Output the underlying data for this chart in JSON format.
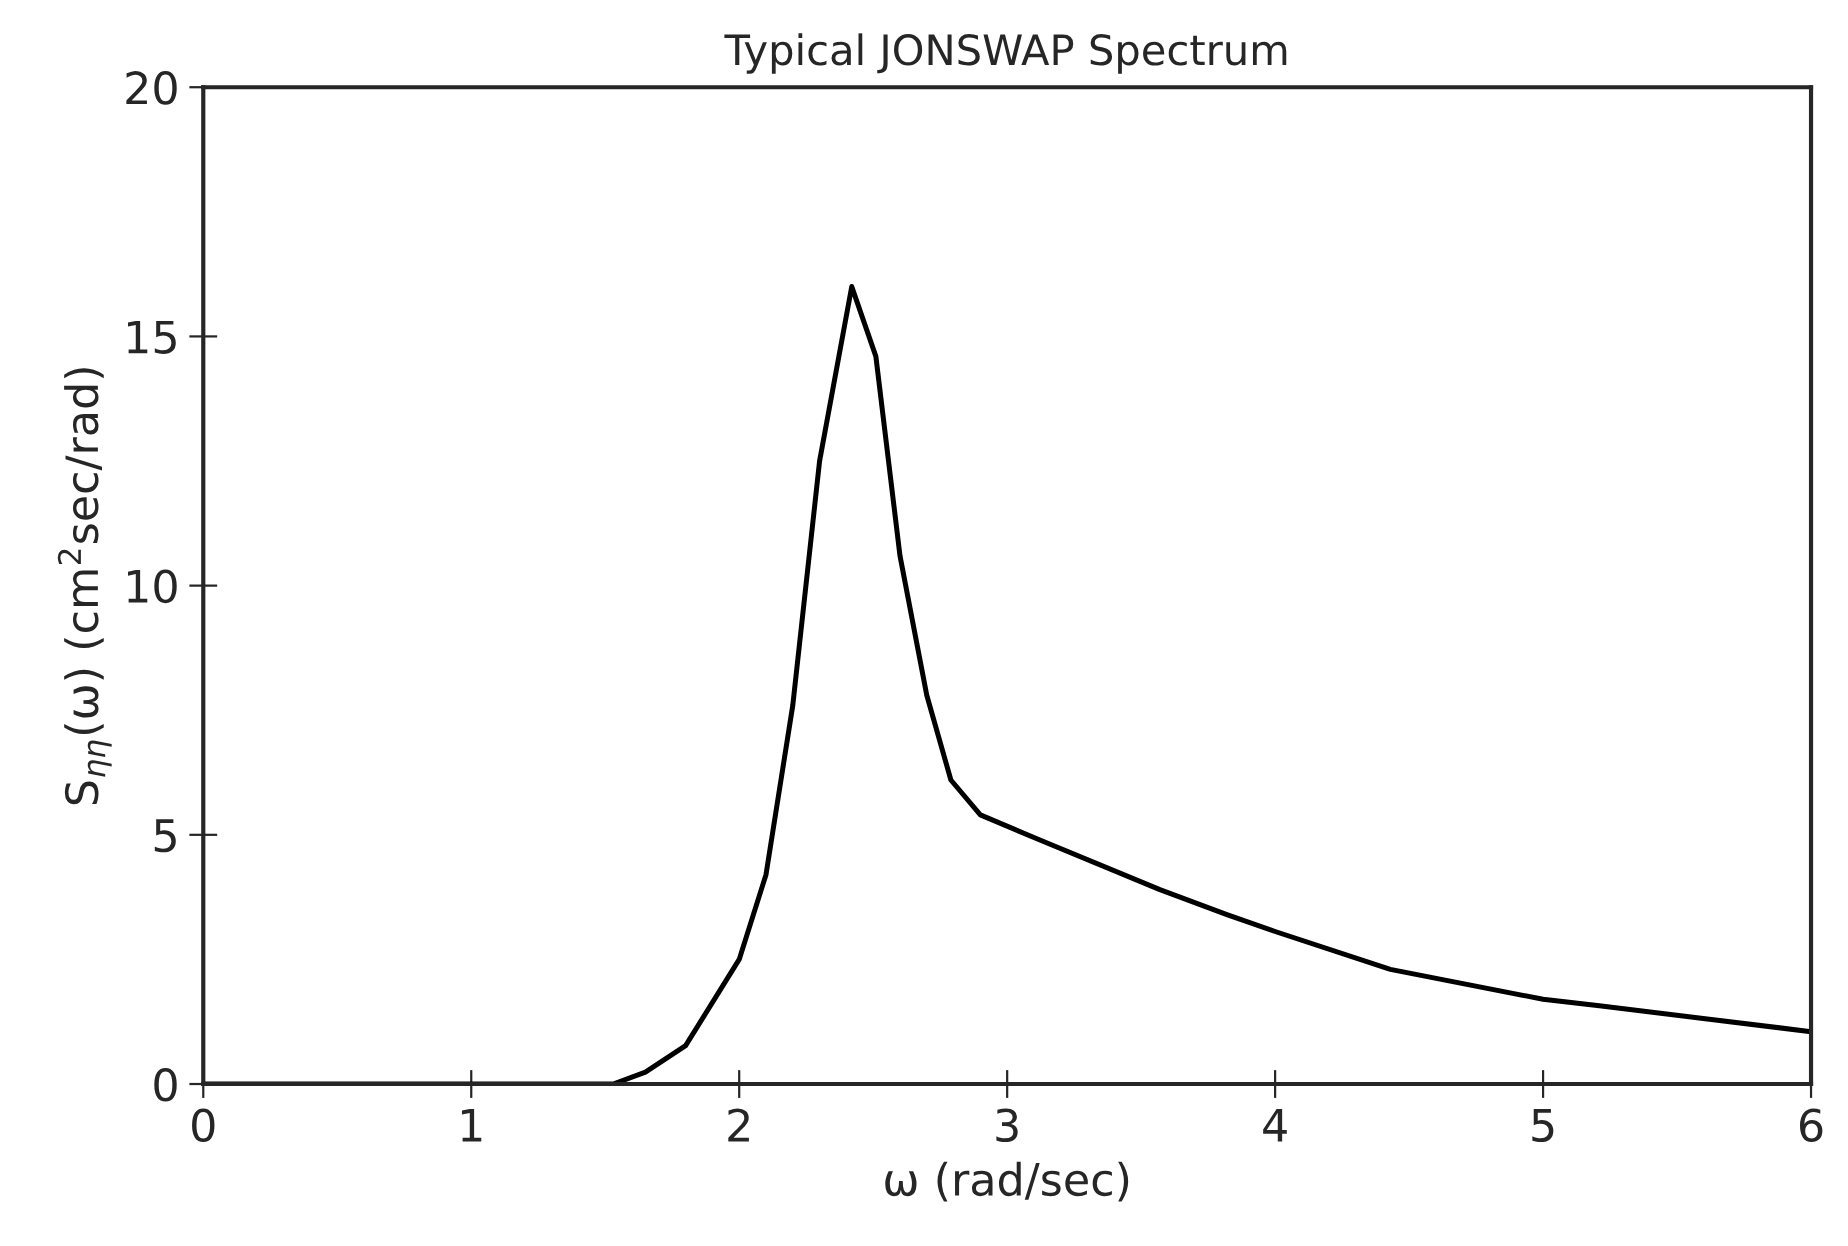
{
  "chart_data": {
    "type": "line",
    "title": "Typical JONSWAP Spectrum",
    "xlabel": "ω (rad/sec)",
    "ylabel": "S$_{ηη}$(ω) (cm$^{2}$sec/rad)",
    "x": [
      0,
      1.53,
      1.65,
      1.8,
      2.0,
      2.1,
      2.2,
      2.3,
      2.42,
      2.51,
      2.6,
      2.7,
      2.79,
      2.9,
      3.12,
      3.57,
      3.82,
      4.0,
      4.43,
      5.0,
      5.21,
      6.0
    ],
    "series": [
      {
        "color": "#000000",
        "values": [
          0,
          0,
          0.24,
          0.77,
          2.5,
          4.2,
          7.6,
          12.5,
          16.0,
          14.6,
          10.6,
          7.8,
          6.1,
          5.4,
          4.9,
          3.9,
          3.4,
          3.06,
          2.3,
          1.7,
          1.57,
          1.05
        ]
      }
    ],
    "xlim": [
      0,
      6
    ],
    "ylim": [
      0,
      20
    ],
    "xticks": [
      0,
      1,
      2,
      3,
      4,
      5,
      6
    ],
    "yticks": [
      0,
      5,
      10,
      15,
      20
    ],
    "grid": false,
    "legend": false,
    "marker": "none",
    "line_style": "solid"
  }
}
